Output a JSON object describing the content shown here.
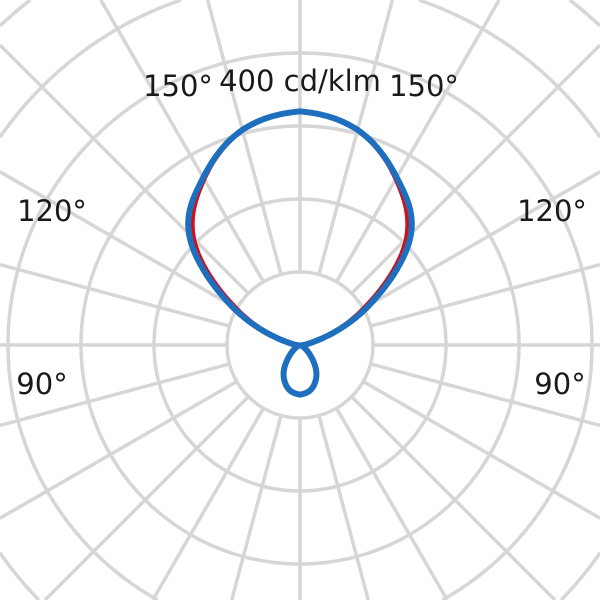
{
  "chart_data": {
    "type": "polar",
    "unit_label": "400 cd/klm",
    "angle_labels": [
      "150°",
      "150°",
      "120°",
      "120°",
      "90°",
      "90°"
    ],
    "radial_grid_step": 100,
    "radial_grid_max": 700,
    "angle_grid_step": 15,
    "grid": true,
    "angles_deg": [
      0,
      15,
      30,
      45,
      60,
      75,
      90,
      105,
      120,
      135,
      150,
      165,
      180
    ],
    "series": [
      {
        "color": "#d0101c",
        "values": [
          68,
          62,
          45,
          20,
          5,
          2,
          5,
          22,
          100,
          205,
          262,
          304,
          320
        ]
      },
      {
        "color": "#1f6fbf",
        "values": [
          68,
          62,
          45,
          20,
          5,
          2,
          5,
          25,
          110,
          215,
          265,
          305,
          320
        ]
      }
    ],
    "grid_color": "#d6d6d6"
  }
}
